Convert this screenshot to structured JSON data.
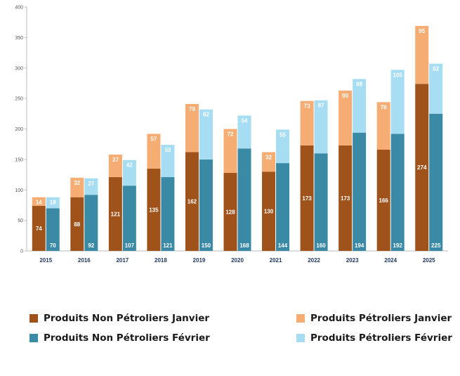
{
  "chart_data": {
    "type": "bar",
    "stacked": true,
    "categories": [
      "2015",
      "2016",
      "2017",
      "2018",
      "2019",
      "2020",
      "2021",
      "2022",
      "2023",
      "2024",
      "2025"
    ],
    "groups": [
      {
        "name": "Janvier",
        "series": [
          {
            "name": "Produits Non Pétroliers Janvier",
            "color": "#a0521b",
            "values": [
              74,
              88,
              121,
              135,
              162,
              128,
              130,
              173,
              173,
              166,
              274
            ]
          },
          {
            "name": "Produits Pétroliers Janvier",
            "color": "#f6ad74",
            "values": [
              14,
              32,
              37,
              57,
              79,
              72,
              32,
              73,
              90,
              78,
              95
            ]
          }
        ]
      },
      {
        "name": "Février",
        "series": [
          {
            "name": "Produits Non Pétroliers Février",
            "color": "#3a8aa6",
            "values": [
              70,
              92,
              107,
              121,
              150,
              168,
              144,
              160,
              194,
              192,
              225
            ]
          },
          {
            "name": "Produits Pétroliers Février",
            "color": "#a6ddf2",
            "values": [
              18,
              27,
              42,
              53,
              82,
              54,
              55,
              87,
              88,
              105,
              82
            ]
          }
        ]
      }
    ],
    "ylim": [
      0,
      400
    ],
    "yticks": [
      0,
      50,
      100,
      150,
      200,
      250,
      300,
      350,
      400
    ],
    "grid": false,
    "legend_position": "bottom"
  },
  "legend": [
    {
      "label": "Produits Non Pétroliers Janvier",
      "color": "#a0521b"
    },
    {
      "label": "Produits Pétroliers Janvier",
      "color": "#f6ad74"
    },
    {
      "label": "Produits Non Pétroliers Février",
      "color": "#3a8aa6"
    },
    {
      "label": "Produits Pétroliers Février",
      "color": "#a6ddf2"
    }
  ]
}
